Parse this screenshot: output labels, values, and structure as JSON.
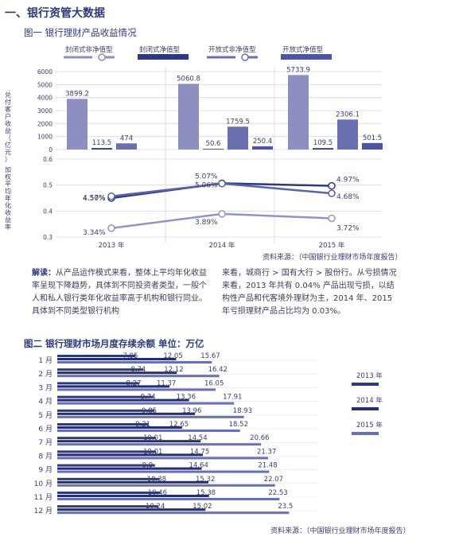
{
  "section_title": "一、银行资管大数据",
  "figure1": {
    "title": "图一  银行理财产品收益情况",
    "source": "资料来源：（中国银行业理财市场年度报告）"
  },
  "paragraph": {
    "lead": "解读：",
    "left": "从产品运作模式来看，整体上平均年化收益率呈现下降趋势，具体到不同投资者类型，一般个人和私人银行类年化收益率高于机构和银行同业。具体到不同类型银行机构",
    "right": "来看，城商行 > 国有大行 > 股份行。从亏损情况来看，2013 年共有 0.04% 产品出现亏损，以结构性产品和代客境外理财为主，2014 年、2015 年亏损理财产品占比均为 0.03%。"
  },
  "figure2": {
    "title": "图二  银行理财市场月度存续余额 单位：万亿",
    "source": "资料来源：（中国银行业理财市场年度报告）"
  },
  "chart_data": [
    {
      "type": "bar",
      "legend": [
        "封闭式非净值型",
        "封闭式净值型",
        "开放式非净值型",
        "开放式净值型"
      ],
      "legend_placement": "top",
      "colors": [
        "#8c8fc0",
        "#2e3a7e",
        "#6a6fb0",
        "#4c559e"
      ],
      "categories": [
        "2013 年",
        "2014 年",
        "2015 年"
      ],
      "ylabel": "兑付客户收益（亿元）",
      "ylim": [
        0,
        6000
      ],
      "yticks": [
        0,
        1000,
        2000,
        3000,
        4000,
        5000,
        6000
      ],
      "series": [
        {
          "name": "封闭式非净值型",
          "values": [
            3899.2,
            5060.8,
            5733.9
          ]
        },
        {
          "name": "封闭式净值型",
          "values": [
            113.5,
            50.6,
            109.5
          ]
        },
        {
          "name": "开放式非净值型",
          "values": [
            474,
            1759.5,
            2306.1
          ]
        },
        {
          "name": "开放式净值型",
          "values": [
            null,
            250.4,
            501.5
          ]
        }
      ]
    },
    {
      "type": "line",
      "x": [
        "2013 年",
        "2014 年",
        "2015 年"
      ],
      "ylabel": "加权平均年化收益率",
      "ylim": [
        0.3,
        0.6
      ],
      "yticks": [
        0.3,
        0.4,
        0.5,
        0.6
      ],
      "colors": [
        "#2e3a7e",
        "#5c63a8",
        "#9094c6"
      ],
      "series": [
        {
          "values": [
            4.5,
            5.07,
            4.97
          ],
          "labels": [
            "4.50%",
            "5.07%",
            "4.97%"
          ]
        },
        {
          "values": [
            4.57,
            5.06,
            4.68
          ],
          "labels": [
            "4.57%",
            "5.06%",
            "4.68%"
          ]
        },
        {
          "values": [
            3.34,
            3.89,
            3.72
          ],
          "labels": [
            "3.34%",
            "3.89%",
            "3.72%"
          ]
        }
      ]
    },
    {
      "type": "bar",
      "orientation": "horizontal",
      "categories": [
        "1 月",
        "2 月",
        "3 月",
        "4 月",
        "5 月",
        "6 月",
        "7 月",
        "8 月",
        "9 月",
        "10 月",
        "11 月",
        "12 月"
      ],
      "legend_placement": "right",
      "colors": [
        "#2e3a7e",
        "#262f6e",
        "#6a6fb0"
      ],
      "series": [
        {
          "name": "2013 年",
          "values": [
            7.95,
            8.74,
            8.27,
            9.74,
            9.85,
            9.21,
            10.01,
            10.01,
            9.9,
            10.38,
            10.46,
            10.24
          ]
        },
        {
          "name": "2014 年",
          "values": [
            12.05,
            12.12,
            11.37,
            13.36,
            13.96,
            12.65,
            14.54,
            14.75,
            14.64,
            15.32,
            15.38,
            15.02
          ]
        },
        {
          "name": "2015 年",
          "values": [
            15.67,
            16.42,
            16.05,
            17.91,
            18.93,
            18.52,
            20.66,
            21.37,
            21.48,
            22.07,
            22.53,
            23.5
          ]
        }
      ],
      "xlim": [
        0,
        24
      ]
    }
  ]
}
